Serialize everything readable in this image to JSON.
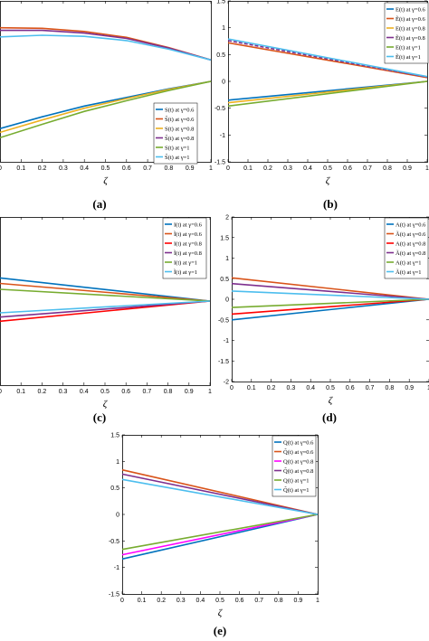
{
  "chart_data": [
    {
      "id": "a",
      "type": "line",
      "panel_label": "(a)",
      "xlabel": "ζ",
      "xlim": [
        0,
        1
      ],
      "ylim": [
        -1.5,
        1.5
      ],
      "xticks": [
        "0",
        "0.1",
        "0.2",
        "0.3",
        "0.4",
        "0.5",
        "0.6",
        "0.7",
        "0.8",
        "0.9",
        "1"
      ],
      "yticks": [],
      "legend_position": "lower-right",
      "grid": false,
      "series": [
        {
          "name": "S(t) at γ=0.6",
          "color": "#0072BD",
          "x": [
            0,
            0.2,
            0.4,
            0.6,
            0.8,
            1
          ],
          "y": [
            -0.88,
            -0.66,
            -0.46,
            -0.3,
            -0.14,
            0
          ]
        },
        {
          "name": "S̃(t) at γ=0.6",
          "color": "#D95319",
          "x": [
            0,
            0.2,
            0.4,
            0.6,
            0.8,
            1
          ],
          "y": [
            1.0,
            0.99,
            0.93,
            0.82,
            0.63,
            0.4
          ]
        },
        {
          "name": "S(t) at γ=0.8",
          "color": "#EDB120",
          "x": [
            0,
            0.2,
            0.4,
            0.6,
            0.8,
            1
          ],
          "y": [
            -0.95,
            -0.72,
            -0.5,
            -0.32,
            -0.15,
            0
          ]
        },
        {
          "name": "S̃(t) at γ=0.8",
          "color": "#7E2F8E",
          "x": [
            0,
            0.2,
            0.4,
            0.6,
            0.8,
            1
          ],
          "y": [
            0.95,
            0.95,
            0.9,
            0.8,
            0.62,
            0.4
          ]
        },
        {
          "name": "S(t) at γ=1",
          "color": "#77AC30",
          "x": [
            0,
            0.2,
            0.4,
            0.6,
            0.8,
            1
          ],
          "y": [
            -1.05,
            -0.8,
            -0.56,
            -0.36,
            -0.17,
            0
          ]
        },
        {
          "name": "S̃(t) at γ=1",
          "color": "#4DBEEE",
          "x": [
            0,
            0.2,
            0.4,
            0.6,
            0.8,
            1
          ],
          "y": [
            0.83,
            0.86,
            0.84,
            0.76,
            0.6,
            0.4
          ]
        }
      ]
    },
    {
      "id": "b",
      "type": "line",
      "panel_label": "(b)",
      "xlabel": "ζ",
      "xlim": [
        0,
        1
      ],
      "ylim": [
        -1.5,
        1.5
      ],
      "xticks": [
        "0",
        "0.1",
        "0.2",
        "0.3",
        "0.4",
        "0.5",
        "0.6",
        "0.7",
        "0.8",
        "0.9",
        "1"
      ],
      "yticks": [
        "-1.5",
        "-1",
        "-0.5",
        "0",
        "0.5",
        "1",
        "1.5"
      ],
      "legend_position": "top-right",
      "grid": false,
      "series": [
        {
          "name": "E(t) at γ=0.6",
          "color": "#0072BD",
          "x": [
            0,
            1
          ],
          "y": [
            -0.35,
            0
          ]
        },
        {
          "name": "Ẽ(t) at γ=0.6",
          "color": "#D95319",
          "x": [
            0,
            1
          ],
          "y": [
            0.72,
            0.07
          ]
        },
        {
          "name": "E(t) at γ=0.8",
          "color": "#EDB120",
          "x": [
            0,
            1
          ],
          "y": [
            -0.4,
            0
          ]
        },
        {
          "name": "Ẽ(t) at γ=0.8",
          "color": "#7E2F8E",
          "x": [
            0,
            1
          ],
          "y": [
            0.76,
            0.08
          ]
        },
        {
          "name": "E(t) at γ=1",
          "color": "#77AC30",
          "x": [
            0,
            1
          ],
          "y": [
            -0.46,
            0
          ]
        },
        {
          "name": "Ẽ(t) at γ=1",
          "color": "#4DBEEE",
          "x": [
            0,
            1
          ],
          "y": [
            0.79,
            0.09
          ]
        }
      ]
    },
    {
      "id": "c",
      "type": "line",
      "panel_label": "(c)",
      "xlabel": "ζ",
      "xlim": [
        0,
        1
      ],
      "ylim": [
        -2,
        2
      ],
      "xticks": [
        "0",
        "0.1",
        "0.2",
        "0.3",
        "0.4",
        "0.5",
        "0.6",
        "0.7",
        "0.8",
        "0.9",
        "1"
      ],
      "yticks": [],
      "legend_position": "top-right",
      "grid": false,
      "series": [
        {
          "name": "I(t) at γ=0.6",
          "color": "#0072BD",
          "x": [
            0,
            1
          ],
          "y": [
            0.55,
            0
          ]
        },
        {
          "name": "Ĩ(t) at γ=0.6",
          "color": "#D95319",
          "x": [
            0,
            1
          ],
          "y": [
            0.42,
            0
          ]
        },
        {
          "name": "I(t) at γ=0.8",
          "color": "#FF0000",
          "x": [
            0,
            1
          ],
          "y": [
            -0.48,
            0
          ]
        },
        {
          "name": "Ĩ(t) at γ=0.8",
          "color": "#7E2F8E",
          "x": [
            0,
            1
          ],
          "y": [
            -0.38,
            0
          ]
        },
        {
          "name": "I(t) at γ=1",
          "color": "#77AC30",
          "x": [
            0,
            1
          ],
          "y": [
            0.28,
            0
          ]
        },
        {
          "name": "Ĩ(t) at γ=1",
          "color": "#4DBEEE",
          "x": [
            0,
            1
          ],
          "y": [
            -0.28,
            0
          ]
        }
      ]
    },
    {
      "id": "d",
      "type": "line",
      "panel_label": "(d)",
      "xlabel": "ζ",
      "xlim": [
        0,
        1
      ],
      "ylim": [
        -2,
        2
      ],
      "xticks": [
        "0",
        "0.1",
        "0.2",
        "0.3",
        "0.4",
        "0.5",
        "0.6",
        "0.7",
        "0.8",
        "0.9",
        "1"
      ],
      "yticks": [
        "-2",
        "-1.5",
        "-1",
        "-0.5",
        "0",
        "0.5",
        "1",
        "1.5",
        "2"
      ],
      "legend_position": "top-right",
      "grid": false,
      "series": [
        {
          "name": "A(t) at γ=0.6",
          "color": "#0072BD",
          "x": [
            0,
            1
          ],
          "y": [
            -0.5,
            0
          ]
        },
        {
          "name": "Ã(t) at γ=0.6",
          "color": "#D95319",
          "x": [
            0,
            1
          ],
          "y": [
            0.52,
            0
          ]
        },
        {
          "name": "A(t) at γ=0.8",
          "color": "#FF0000",
          "x": [
            0,
            1
          ],
          "y": [
            -0.36,
            0
          ]
        },
        {
          "name": "Ã(t) at γ=0.8",
          "color": "#7E2F8E",
          "x": [
            0,
            1
          ],
          "y": [
            0.38,
            0
          ]
        },
        {
          "name": "A(t) at γ=1",
          "color": "#77AC30",
          "x": [
            0,
            1
          ],
          "y": [
            -0.2,
            0
          ]
        },
        {
          "name": "Ã(t) at γ=1",
          "color": "#4DBEEE",
          "x": [
            0,
            1
          ],
          "y": [
            0.2,
            0
          ]
        }
      ]
    },
    {
      "id": "e",
      "type": "line",
      "panel_label": "(e)",
      "xlabel": "ζ",
      "xlim": [
        0,
        1
      ],
      "ylim": [
        -1.5,
        1.5
      ],
      "xticks": [
        "0",
        "0.1",
        "0.2",
        "0.3",
        "0.4",
        "0.5",
        "0.6",
        "0.7",
        "0.8",
        "0.9",
        "1"
      ],
      "yticks": [
        "-1.5",
        "-1",
        "-0.5",
        "0",
        "0.5",
        "1",
        "1.5"
      ],
      "legend_position": "top-right",
      "grid": false,
      "series": [
        {
          "name": "Q(t) at γ=0.6",
          "color": "#0072BD",
          "x": [
            0,
            1
          ],
          "y": [
            -0.84,
            0
          ]
        },
        {
          "name": "Q̃(t) at γ=0.6",
          "color": "#D95319",
          "x": [
            0,
            1
          ],
          "y": [
            0.84,
            0
          ]
        },
        {
          "name": "Q(t) at γ=0.8",
          "color": "#FF00FF",
          "x": [
            0,
            1
          ],
          "y": [
            -0.76,
            0
          ]
        },
        {
          "name": "Q̃(t) at γ=0.8",
          "color": "#7E2F8E",
          "x": [
            0,
            1
          ],
          "y": [
            0.76,
            0
          ]
        },
        {
          "name": "Q(t) at γ=1",
          "color": "#77AC30",
          "x": [
            0,
            1
          ],
          "y": [
            -0.66,
            0
          ]
        },
        {
          "name": "Q̃(t) at γ=1",
          "color": "#4DBEEE",
          "x": [
            0,
            1
          ],
          "y": [
            0.66,
            0
          ]
        }
      ]
    }
  ]
}
